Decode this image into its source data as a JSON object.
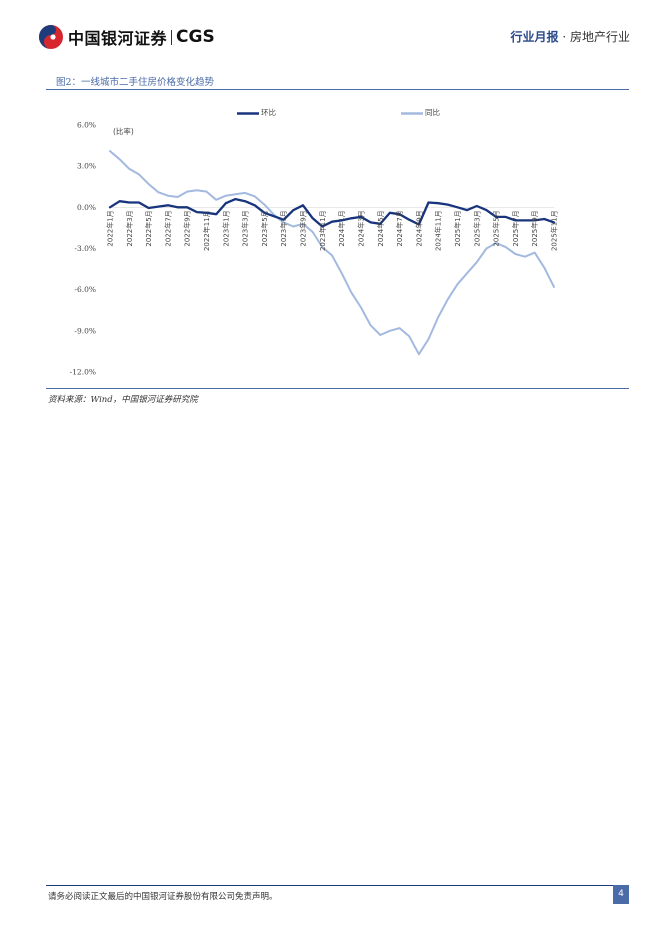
{
  "header": {
    "logo_cn": "中国银河证券",
    "logo_en": "CGS",
    "report_type": "行业月报",
    "separator": "·",
    "industry": "房地产行业"
  },
  "figure": {
    "title": "图2：一线城市二手住房价格变化趋势",
    "source": "资料来源：Wind，中国银河证券研究院"
  },
  "footer": {
    "disclaimer": "请务必阅读正文最后的中国银河证券股份有限公司免责声明。",
    "page": "4"
  },
  "colors": {
    "mom": "#17347c",
    "yoy": "#a3b9df",
    "accent": "#4a6aa8",
    "logo_red": "#d7262e",
    "logo_blue": "#1f3c7a"
  },
  "chart_data": {
    "type": "line",
    "ylabel": "(比率)",
    "ylim": [
      -12,
      6
    ],
    "yticks": [
      6,
      3,
      0,
      -3,
      -6,
      -9,
      -12
    ],
    "ytick_labels": [
      "6.0%",
      "3.0%",
      "0.0%",
      "-3.0%",
      "-6.0%",
      "-9.0%",
      "-12.0%"
    ],
    "legend_position": "top",
    "x": [
      "2022年1月",
      "2022年2月",
      "2022年3月",
      "2022年4月",
      "2022年5月",
      "2022年6月",
      "2022年7月",
      "2022年8月",
      "2022年9月",
      "2022年10月",
      "2022年11月",
      "2022年12月",
      "2023年1月",
      "2023年2月",
      "2023年3月",
      "2023年4月",
      "2023年5月",
      "2023年6月",
      "2023年7月",
      "2023年8月",
      "2023年9月",
      "2023年10月",
      "2023年11月",
      "2023年12月",
      "2024年1月",
      "2024年2月",
      "2024年3月",
      "2024年4月",
      "2024年5月",
      "2024年6月",
      "2024年7月",
      "2024年8月",
      "2024年9月",
      "2024年10月",
      "2024年11月",
      "2024年12月",
      "2025年1月",
      "2025年2月",
      "2025年3月",
      "2025年4月",
      "2025年5月",
      "2025年6月",
      "2025年7月",
      "2025年8月",
      "2025年9月",
      "2025年10月",
      "2025年11月"
    ],
    "xtick_labels": [
      "2022年1月",
      "2022年3月",
      "2022年5月",
      "2022年7月",
      "2022年9月",
      "2022年11月",
      "2023年1月",
      "2023年3月",
      "2023年5月",
      "2023年7月",
      "2023年9月",
      "2023年11月",
      "2024年1月",
      "2024年3月",
      "2024年5月",
      "2024年7月",
      "2024年9月",
      "2024年11月",
      "2025年1月",
      "2025年3月",
      "2025年5月",
      "2025年7月",
      "2025年9月",
      "2025年11月"
    ],
    "series": [
      {
        "name": "环比",
        "values": [
          0.0,
          0.45,
          0.35,
          0.35,
          -0.05,
          0.05,
          0.15,
          0.0,
          0.0,
          -0.35,
          -0.4,
          -0.5,
          0.3,
          0.6,
          0.45,
          0.15,
          -0.4,
          -0.65,
          -0.9,
          -0.2,
          0.15,
          -0.8,
          -1.4,
          -1.05,
          -0.95,
          -0.8,
          -0.7,
          -1.1,
          -1.2,
          -0.4,
          -0.5,
          -0.9,
          -1.25,
          0.35,
          0.3,
          0.2,
          0.0,
          -0.2,
          0.1,
          -0.2,
          -0.7,
          -0.7,
          -0.95,
          -0.95,
          -0.95,
          -0.85,
          -1.1
        ]
      },
      {
        "name": "同比",
        "values": [
          4.1,
          3.5,
          2.8,
          2.4,
          1.7,
          1.1,
          0.85,
          0.75,
          1.15,
          1.25,
          1.15,
          0.55,
          0.85,
          0.95,
          1.05,
          0.8,
          0.2,
          -0.55,
          -1.1,
          -1.4,
          -1.2,
          -1.8,
          -2.9,
          -3.5,
          -4.8,
          -6.2,
          -7.3,
          -8.6,
          -9.3,
          -9.0,
          -8.8,
          -9.4,
          -10.7,
          -9.6,
          -8.0,
          -6.7,
          -5.6,
          -4.8,
          -4.0,
          -3.0,
          -2.6,
          -2.9,
          -3.4,
          -3.6,
          -3.3,
          -4.4,
          -5.8
        ]
      }
    ]
  }
}
